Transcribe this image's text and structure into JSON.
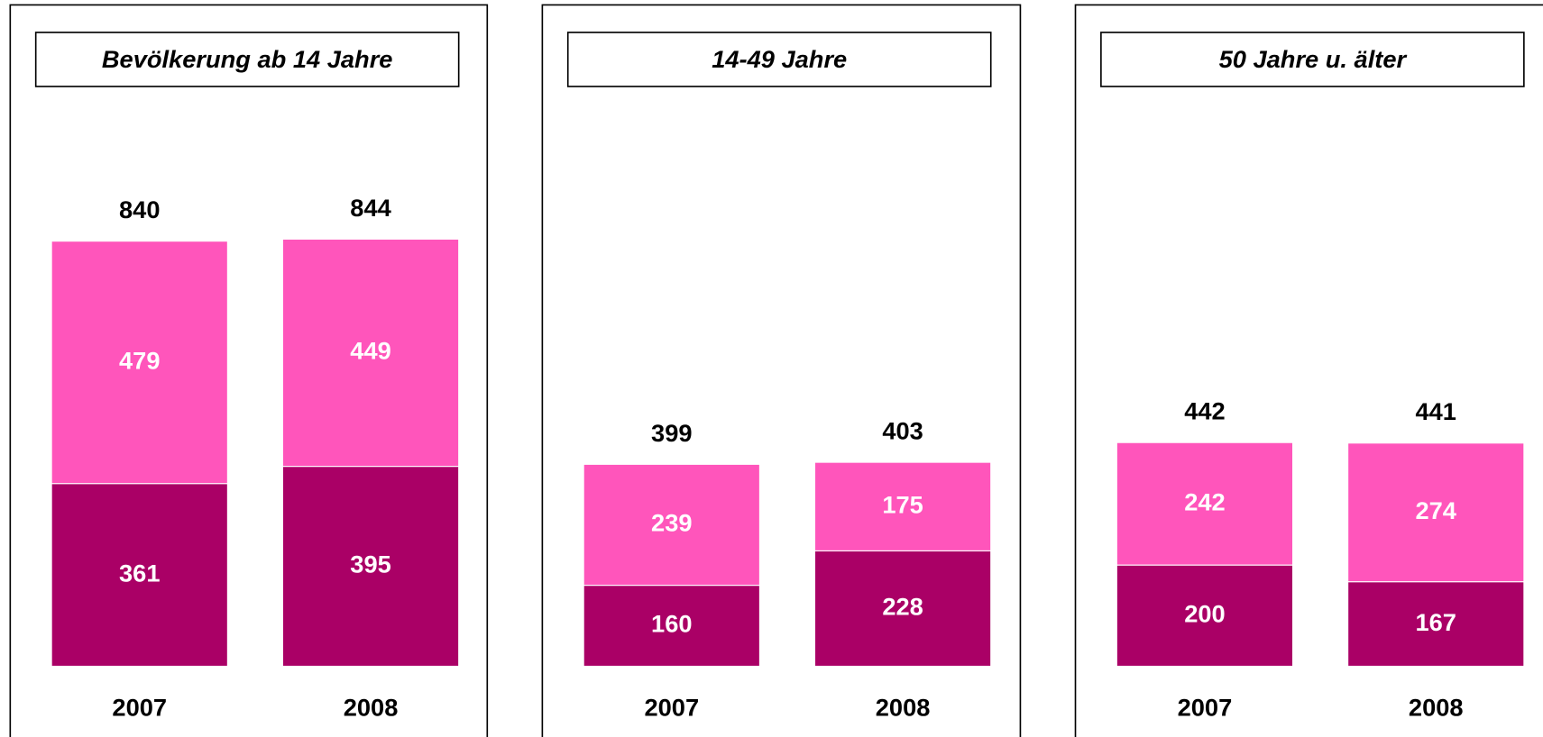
{
  "chart_data": [
    {
      "type": "bar",
      "stacked": true,
      "title": "Bevölkerung ab 14 Jahre",
      "categories": [
        "2007",
        "2008"
      ],
      "series": [
        {
          "color": "#aa0066",
          "values": [
            361,
            395
          ]
        },
        {
          "color": "#ff55bb",
          "values": [
            479,
            449
          ]
        }
      ],
      "totals": [
        840,
        844
      ],
      "ylim": [
        0,
        1000
      ]
    },
    {
      "type": "bar",
      "stacked": true,
      "title": "14-49 Jahre",
      "categories": [
        "2007",
        "2008"
      ],
      "series": [
        {
          "color": "#aa0066",
          "values": [
            160,
            228
          ]
        },
        {
          "color": "#ff55bb",
          "values": [
            239,
            175
          ]
        }
      ],
      "totals": [
        399,
        403
      ],
      "ylim": [
        0,
        1000
      ]
    },
    {
      "type": "bar",
      "stacked": true,
      "title": "50 Jahre u. älter",
      "categories": [
        "2007",
        "2008"
      ],
      "series": [
        {
          "color": "#aa0066",
          "values": [
            200,
            167
          ]
        },
        {
          "color": "#ff55bb",
          "values": [
            242,
            274
          ]
        }
      ],
      "totals": [
        442,
        441
      ],
      "ylim": [
        0,
        1000
      ]
    }
  ]
}
